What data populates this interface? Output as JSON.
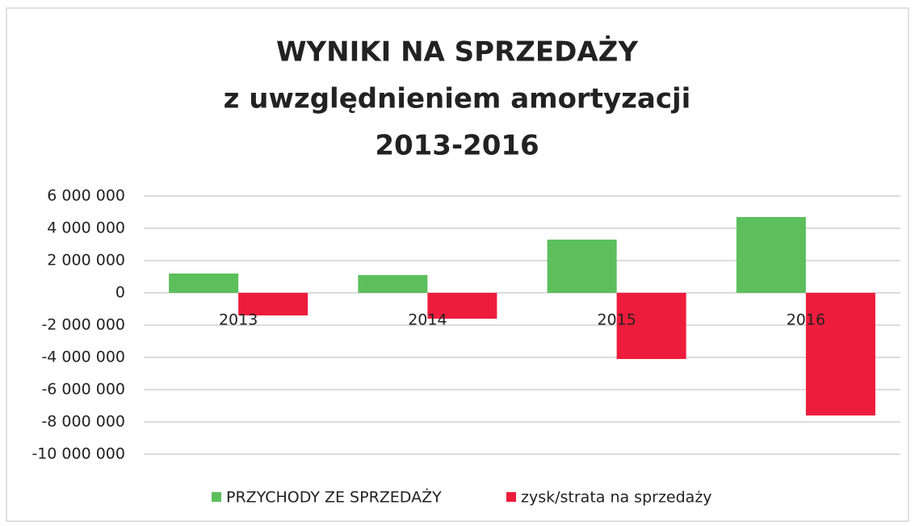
{
  "chart_data": {
    "type": "bar",
    "title": [
      "WYNIKI NA SPRZEDAŻY",
      "z uwzględnieniem amortyzacji",
      "2013-2016"
    ],
    "categories": [
      "2013",
      "2014",
      "2015",
      "2016"
    ],
    "series": [
      {
        "name": "PRZYCHODY ZE SPRZEDAŻY",
        "color": "#5cbf5c",
        "values": [
          1200000,
          1100000,
          3300000,
          4700000
        ]
      },
      {
        "name": "zysk/strata na sprzedaży",
        "color": "#ee1c3c",
        "values": [
          -1400000,
          -1600000,
          -4100000,
          -7600000
        ]
      }
    ],
    "ylim": [
      -10000000,
      6000000
    ],
    "yticks": [
      {
        "value": -10000000,
        "label": "-10 000 000"
      },
      {
        "value": -8000000,
        "label": "-8 000 000"
      },
      {
        "value": -6000000,
        "label": "-6 000 000"
      },
      {
        "value": -4000000,
        "label": "-4 000 000"
      },
      {
        "value": -2000000,
        "label": "-2 000 000"
      },
      0,
      {
        "value": 2000000,
        "label": "2 000 000"
      },
      {
        "value": 4000000,
        "label": "4 000 000"
      },
      {
        "value": 6000000,
        "label": "6 000 000"
      }
    ],
    "grid": true,
    "legend": "bottom"
  }
}
